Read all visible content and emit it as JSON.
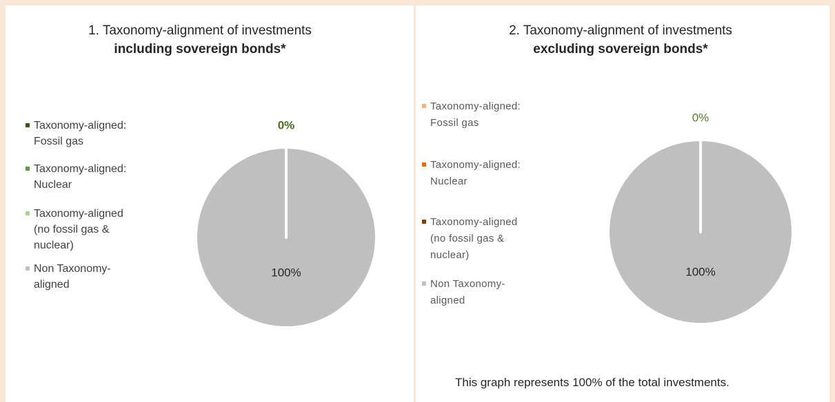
{
  "chart_data": [
    {
      "type": "pie",
      "title": "1. Taxonomy-alignment of investments",
      "subtitle": "including sovereign bonds*",
      "categories": [
        "Taxonomy-aligned: Fossil gas",
        "Taxonomy-aligned: Nuclear",
        "Taxonomy-aligned (no fossil gas & nuclear)",
        "Non Taxonomy-aligned"
      ],
      "values": [
        0,
        0,
        0,
        100
      ],
      "value_labels": [
        "0%",
        null,
        null,
        "100%"
      ],
      "colors": [
        "#375623",
        "#5b9b31",
        "#a9d08e",
        "#bfbfbf"
      ]
    },
    {
      "type": "pie",
      "title": "2. Taxonomy-alignment of investments",
      "subtitle": "excluding sovereign bonds*",
      "categories": [
        "Taxonomy-aligned: Fossil gas",
        "Taxonomy-aligned: Nuclear",
        "Taxonomy-aligned (no fossil gas & nuclear)",
        "Non Taxonomy-aligned"
      ],
      "values": [
        0,
        0,
        0,
        100
      ],
      "value_labels": [
        "0%",
        null,
        null,
        "100%"
      ],
      "colors": [
        "#f4b183",
        "#e46c0a",
        "#843c0c",
        "#bfbfbf"
      ],
      "note": "This graph represents 100% of the total investments."
    }
  ]
}
